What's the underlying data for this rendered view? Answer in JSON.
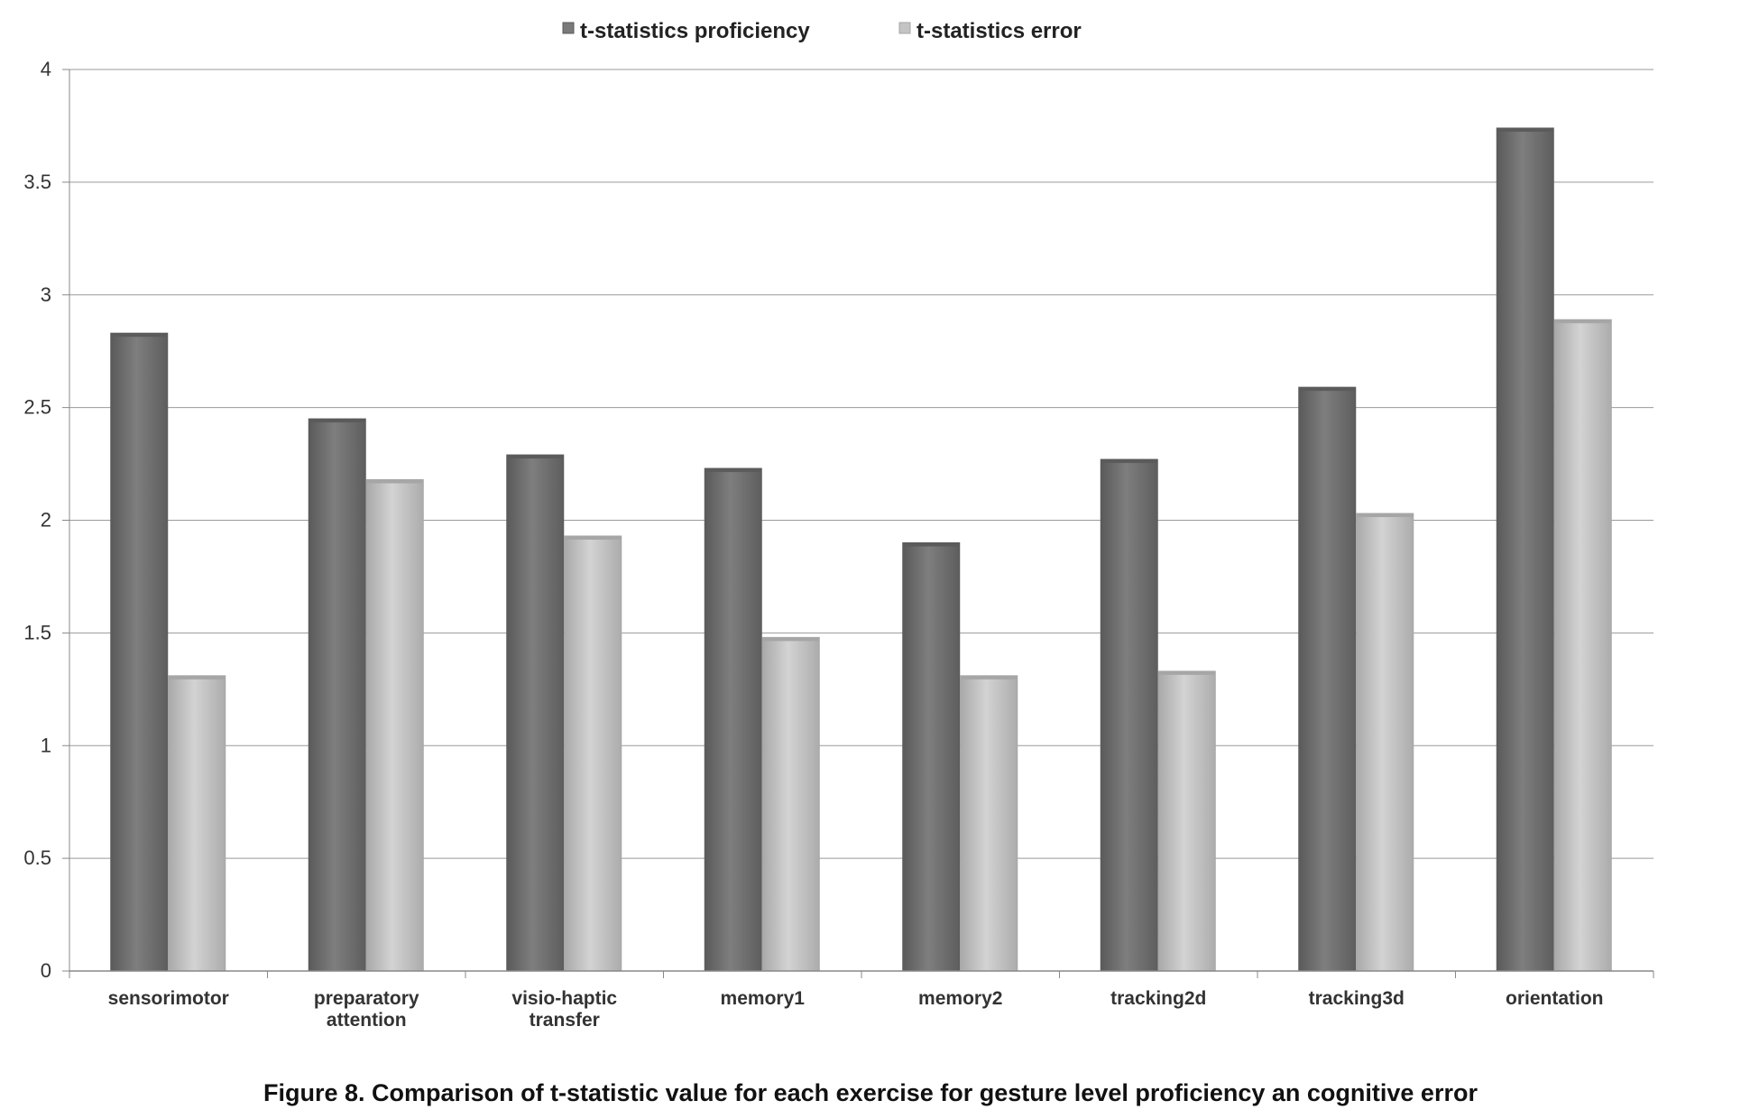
{
  "caption": "Figure 8. Comparison of t-statistic value for each exercise for gesture level proficiency an cognitive error",
  "chart_data": {
    "type": "bar",
    "title": "",
    "xlabel": "",
    "ylabel": "",
    "ylim": [
      0,
      4
    ],
    "yticks": [
      "0",
      "0.5",
      "1",
      "1.5",
      "2",
      "2.5",
      "3",
      "3.5",
      "4"
    ],
    "grid": true,
    "legend_position": "top-center",
    "categories": [
      "sensorimotor",
      "preparatory attention",
      "visio-haptic transfer",
      "memory1",
      "memory2",
      "tracking2d",
      "tracking3d",
      "orientation"
    ],
    "series": [
      {
        "name": "t-statistics proficiency",
        "color": "#7a7a7a",
        "values": [
          2.83,
          2.45,
          2.29,
          2.23,
          1.9,
          2.27,
          2.59,
          3.74
        ]
      },
      {
        "name": "t-statistics error",
        "color": "#c4c4c4",
        "values": [
          1.31,
          2.18,
          1.93,
          1.48,
          1.31,
          1.33,
          2.03,
          2.89
        ]
      }
    ]
  }
}
